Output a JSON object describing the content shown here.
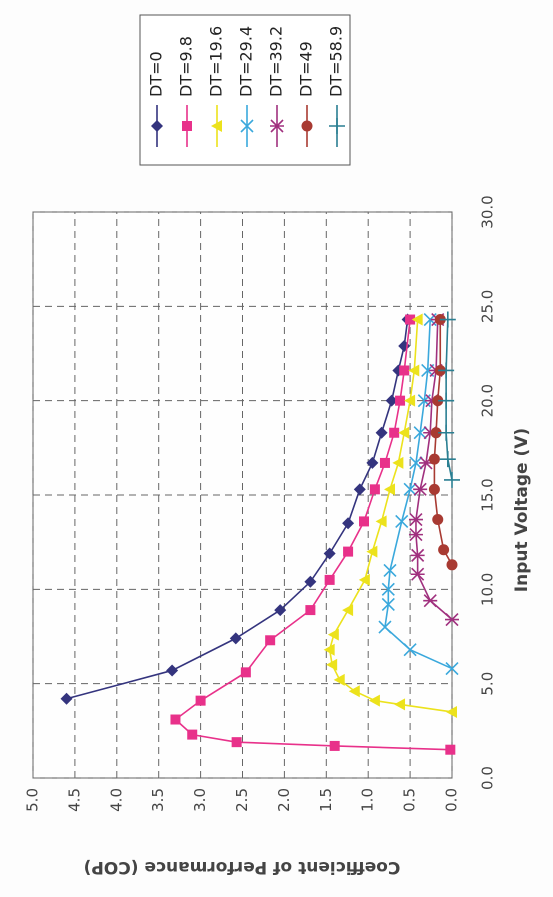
{
  "chart_data": {
    "type": "line",
    "xlabel": "Input Voltage (V)",
    "ylabel": "Coefficient of Performance (COP)",
    "xlim": [
      0,
      30
    ],
    "xticks": [
      {
        "value": 0,
        "label": "0.0"
      },
      {
        "value": 5,
        "label": "5.0"
      },
      {
        "value": 10,
        "label": "10.0"
      },
      {
        "value": 15,
        "label": "15.0"
      },
      {
        "value": 20,
        "label": "20.0"
      },
      {
        "value": 25,
        "label": "25.0"
      },
      {
        "value": 30,
        "label": "30.0"
      }
    ],
    "ylim": [
      0,
      5
    ],
    "yticks": [
      {
        "value": 0,
        "label": "0.0"
      },
      {
        "value": 0.5,
        "label": "0.5"
      },
      {
        "value": 1,
        "label": "1.0"
      },
      {
        "value": 1.5,
        "label": "1.5"
      },
      {
        "value": 2,
        "label": "2.0"
      },
      {
        "value": 2.5,
        "label": "2.5"
      },
      {
        "value": 3,
        "label": "3.0"
      },
      {
        "value": 3.5,
        "label": "3.5"
      },
      {
        "value": 4,
        "label": "4.0"
      },
      {
        "value": 4.5,
        "label": "4.5"
      },
      {
        "value": 5,
        "label": "5.0"
      }
    ],
    "grid": true,
    "rotation": -90,
    "legend": "right",
    "series": [
      {
        "name": "DT=0",
        "color": "#34347e",
        "marker": "diamond",
        "x": [
          4.2,
          5.7,
          7.4,
          8.9,
          10.4,
          11.9,
          13.5,
          15.3,
          16.7,
          18.3,
          20.0,
          21.6,
          22.9,
          24.3
        ],
        "values": [
          4.6,
          3.34,
          2.58,
          2.05,
          1.69,
          1.46,
          1.24,
          1.1,
          0.95,
          0.84,
          0.72,
          0.64,
          0.57,
          0.53
        ]
      },
      {
        "name": "DT=9.8",
        "color": "#e8318a",
        "marker": "square",
        "x": [
          1.5,
          1.7,
          1.9,
          2.3,
          3.1,
          4.1,
          5.6,
          7.3,
          8.9,
          10.5,
          12.0,
          13.6,
          15.3,
          16.7,
          18.3,
          20.0,
          21.6,
          24.3
        ],
        "values": [
          0.02,
          1.4,
          2.57,
          3.1,
          3.3,
          3.0,
          2.46,
          2.17,
          1.69,
          1.46,
          1.24,
          1.05,
          0.92,
          0.8,
          0.69,
          0.62,
          0.57,
          0.5
        ]
      },
      {
        "name": "DT=19.6",
        "color": "#ece21c",
        "marker": "triangle",
        "x": [
          3.5,
          3.9,
          4.1,
          4.6,
          5.2,
          6.0,
          6.8,
          7.6,
          8.9,
          10.5,
          12.0,
          13.6,
          15.3,
          16.7,
          18.3,
          20.0,
          21.6,
          24.3
        ],
        "values": [
          0,
          0.62,
          0.92,
          1.16,
          1.34,
          1.43,
          1.46,
          1.41,
          1.24,
          1.04,
          0.95,
          0.84,
          0.74,
          0.64,
          0.57,
          0.5,
          0.45,
          0.41
        ]
      },
      {
        "name": "DT=29.4",
        "color": "#3aa8dc",
        "marker": "x",
        "x": [
          5.8,
          6.8,
          8.0,
          9.2,
          10.0,
          11.0,
          13.6,
          15.3,
          16.7,
          18.3,
          20.0,
          21.6,
          24.3
        ],
        "values": [
          0,
          0.5,
          0.8,
          0.76,
          0.76,
          0.74,
          0.6,
          0.5,
          0.43,
          0.38,
          0.33,
          0.29,
          0.26
        ]
      },
      {
        "name": "DT=39.2",
        "color": "#a0307e",
        "marker": "asterisk",
        "x": [
          8.4,
          9.4,
          10.8,
          11.8,
          12.9,
          13.7,
          15.3,
          16.7,
          18.3,
          20.0,
          21.6,
          24.3
        ],
        "values": [
          0,
          0.26,
          0.41,
          0.41,
          0.43,
          0.43,
          0.38,
          0.31,
          0.26,
          0.24,
          0.19,
          0.17
        ]
      },
      {
        "name": "DT=49",
        "color": "#a83a32",
        "marker": "circle",
        "x": [
          11.3,
          12.1,
          13.7,
          15.3,
          16.9,
          18.3,
          20.0,
          21.6,
          24.3
        ],
        "values": [
          0,
          0.1,
          0.17,
          0.21,
          0.21,
          0.19,
          0.17,
          0.14,
          0.14
        ]
      },
      {
        "name": "DT=58.9",
        "color": "#2a7f92",
        "marker": "plus",
        "x": [
          15.8,
          16.9,
          18.3,
          20.0,
          21.6,
          24.3
        ],
        "values": [
          0,
          0.05,
          0.07,
          0.07,
          0.07,
          0.05
        ]
      }
    ]
  }
}
